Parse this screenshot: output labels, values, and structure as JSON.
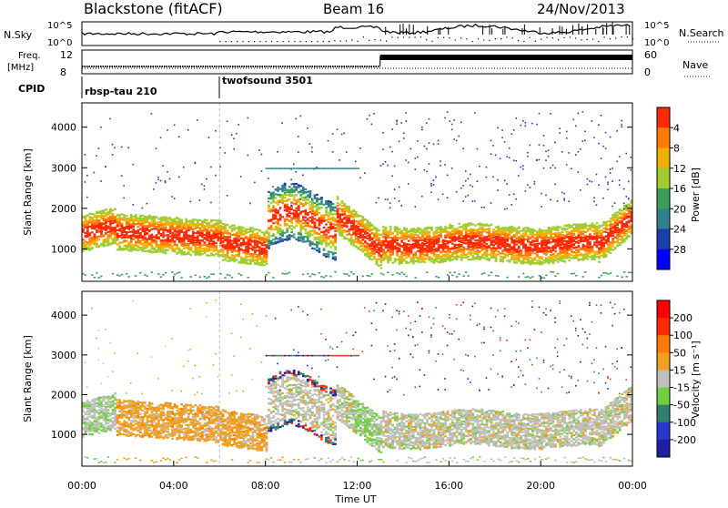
{
  "header": {
    "station": "Blackstone (fitACF)",
    "beam": "Beam 16",
    "date": "24/Nov/2013"
  },
  "noise_panel": {
    "left_label": "N.Sky",
    "right_label": "N.Search",
    "left_ticks": [
      "10^5",
      "10^0"
    ],
    "right_ticks": [
      "10^5",
      "10^0"
    ]
  },
  "freq_panel": {
    "left_label_1": "Freq.",
    "left_label_2": "[MHz]",
    "right_label": "Nave",
    "left_ticks": [
      "12",
      "8"
    ],
    "right_ticks": [
      "60",
      "0"
    ]
  },
  "cpid_panel": {
    "label": "CPID",
    "modes": [
      {
        "name": "rbsp-tau 210",
        "start_hour": 0
      },
      {
        "name": "twofsound 3501",
        "start_hour": 6
      }
    ]
  },
  "chart_data": [
    {
      "type": "heatmap",
      "name": "power",
      "ylabel": "Slant Range [km]",
      "yticks": [
        "1000",
        "2000",
        "3000",
        "4000"
      ],
      "ylim": [
        200,
        4600
      ],
      "xlim": [
        0,
        24
      ],
      "colorbar_label": "Power [dB]",
      "colorbar_ticks": [
        "4",
        "8",
        "12",
        "16",
        "20",
        "24",
        "28"
      ],
      "colors": [
        "#0000ff",
        "#1c3ea8",
        "#2f7f8c",
        "#3d9e5a",
        "#9fcc2f",
        "#f0b000",
        "#ff7a00",
        "#ff2a00"
      ]
    },
    {
      "type": "heatmap",
      "name": "velocity",
      "ylabel": "Slant Range [km]",
      "yticks": [
        "1000",
        "2000",
        "3000",
        "4000"
      ],
      "ylim": [
        200,
        4600
      ],
      "xlim": [
        0,
        24
      ],
      "colorbar_label": "Velocity [m s⁻¹]",
      "colorbar_ticks": [
        "200",
        "100",
        "50",
        "15",
        "-15",
        "-50",
        "-100",
        "-200"
      ],
      "colors": [
        "#1e1ea0",
        "#2838c8",
        "#2f7f6f",
        "#6fcf3f",
        "#bfbfbf",
        "#f0a020",
        "#ff7a00",
        "#ff2a00",
        "#ff0000"
      ]
    }
  ],
  "xaxis": {
    "label": "Time UT",
    "ticks": [
      "00:00",
      "04:00",
      "08:00",
      "12:00",
      "16:00",
      "20:00",
      "00:00"
    ]
  }
}
